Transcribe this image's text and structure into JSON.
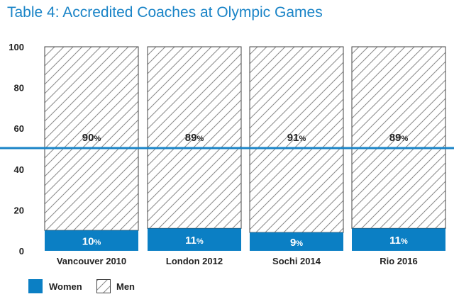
{
  "chart_data": {
    "type": "bar",
    "stacked": true,
    "title": "Table 4: Accredited Coaches at Olympic Games",
    "categories": [
      "Vancouver 2010",
      "London 2012",
      "Sochi 2014",
      "Rio 2016"
    ],
    "series": [
      {
        "name": "Women",
        "values": [
          10,
          11,
          9,
          11
        ],
        "color": "#0b7fc4",
        "pattern": "solid"
      },
      {
        "name": "Men",
        "values": [
          90,
          89,
          91,
          89
        ],
        "color": "#ffffff",
        "pattern": "hatched"
      }
    ],
    "value_suffix": "%",
    "yticks": [
      0,
      20,
      40,
      60,
      80,
      100
    ],
    "ylim": [
      0,
      100
    ],
    "reference_line": {
      "value": 50,
      "color": "#1a84c7"
    },
    "xlabel": "",
    "ylabel": "",
    "legend_position": "bottom-left",
    "colors": {
      "title": "#1a84c7",
      "women": "#0b7fc4",
      "men_stroke": "#444444",
      "hatch": "#8a8a8a"
    }
  }
}
